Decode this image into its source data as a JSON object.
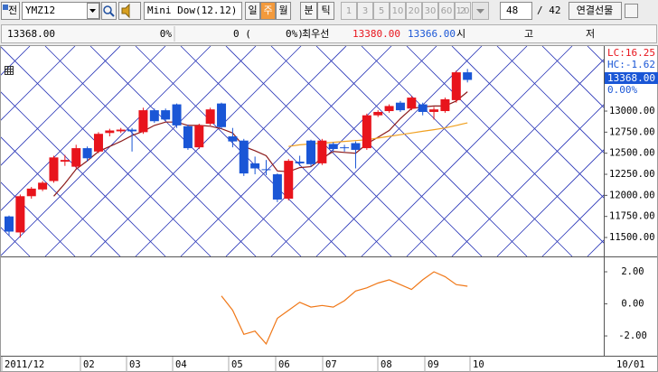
{
  "toolbar": {
    "market": "전",
    "code": "YMZ12",
    "name": "Mini Dow(12.12)",
    "periods": [
      "일",
      "주",
      "월"
    ],
    "active_period": "주",
    "units": [
      "분",
      "틱"
    ],
    "intervals": [
      "1",
      "3",
      "5",
      "10",
      "20",
      "30",
      "60",
      "120"
    ],
    "count": "48",
    "total": "/ 42",
    "button": "연결선물"
  },
  "quote": {
    "price": "13368.00",
    "rate": "0%",
    "change": "0 (",
    "change_rate": "0%)",
    "best_label": "최우선",
    "ask": "13380.00",
    "bid": "13366.00",
    "open_label": "시",
    "high_label": "고",
    "low_label": "저"
  },
  "chart_data": [
    {
      "type": "candlestick",
      "up_color": "#e8141c",
      "down_color": "#1a56d6",
      "open": [
        11750,
        11560,
        11990,
        12070,
        12170,
        12400,
        12340,
        12560,
        12520,
        12740,
        12760,
        12780,
        12750,
        13010,
        13010,
        13080,
        12820,
        12570,
        12850,
        13090,
        12700,
        12650,
        12380,
        12310,
        12250,
        11960,
        12400,
        12650,
        12380,
        12610,
        12570,
        12620,
        12560,
        12950,
        13000,
        13100,
        13030,
        13080,
        12990,
        13000,
        13130,
        13460
      ],
      "close": [
        11570,
        11990,
        12080,
        12150,
        12450,
        12420,
        12560,
        12440,
        12730,
        12770,
        12780,
        12760,
        13010,
        12880,
        12900,
        12830,
        12560,
        12830,
        13020,
        12810,
        12640,
        12260,
        12320,
        12300,
        11950,
        12410,
        12380,
        12370,
        12650,
        12550,
        12560,
        12540,
        12950,
        12990,
        13060,
        13010,
        13160,
        12990,
        13020,
        13140,
        13460,
        13370
      ],
      "high": [
        11760,
        12010,
        12100,
        12170,
        12470,
        12480,
        12600,
        12580,
        12750,
        12790,
        12800,
        12800,
        13040,
        13030,
        13030,
        13090,
        12840,
        12850,
        13040,
        13100,
        12800,
        12670,
        12460,
        12420,
        12260,
        12430,
        12470,
        12660,
        12670,
        12630,
        12600,
        12640,
        12970,
        13010,
        13080,
        13120,
        13180,
        13100,
        13050,
        13160,
        13480,
        13500
      ],
      "low": [
        11520,
        11500,
        11960,
        12050,
        12150,
        12350,
        12320,
        12400,
        12500,
        12700,
        12740,
        12520,
        12730,
        12860,
        12880,
        12800,
        12540,
        12550,
        12830,
        12790,
        12570,
        12230,
        12250,
        12240,
        11920,
        11940,
        12350,
        12340,
        12360,
        12520,
        12520,
        12320,
        12540,
        12930,
        12980,
        12990,
        13010,
        12950,
        12900,
        12980,
        13100,
        13340
      ],
      "series": [
        {
          "color": "#8b1a1a",
          "values": [
            null,
            null,
            null,
            null,
            11990,
            12140,
            12310,
            12410,
            12520,
            12580,
            12640,
            12710,
            12760,
            12830,
            12870,
            12870,
            12830,
            12830,
            12820,
            12790,
            12740,
            12580,
            12530,
            12470,
            12290,
            12280,
            12330,
            12340,
            12440,
            12520,
            12510,
            12500,
            12610,
            12690,
            12770,
            12910,
            13030,
            13050,
            13060,
            13060,
            13120,
            13230
          ]
        },
        {
          "color": "#f0a020",
          "values": [
            null,
            null,
            null,
            null,
            null,
            null,
            null,
            null,
            null,
            null,
            null,
            null,
            null,
            null,
            null,
            null,
            null,
            null,
            null,
            null,
            null,
            null,
            null,
            null,
            null,
            12580,
            12600,
            12610,
            12620,
            12630,
            12640,
            12650,
            12660,
            12680,
            12700,
            12720,
            12740,
            12760,
            12780,
            12800,
            12830,
            12860
          ]
        }
      ],
      "ylim": [
        11286,
        13761
      ],
      "yticks": [
        {
          "value": 13000,
          "label": "13000.00"
        },
        {
          "value": 12750,
          "label": "12750.00"
        },
        {
          "value": 12500,
          "label": "12500.00"
        },
        {
          "value": 12250,
          "label": "12250.00"
        },
        {
          "value": 12000,
          "label": "12000.00"
        },
        {
          "value": 11750,
          "label": "11750.00"
        },
        {
          "value": 11500,
          "label": "11500.00"
        }
      ],
      "lc_label": "LC:16.25",
      "hc_label": "HC:-1.62",
      "last_label": "13368.00",
      "pct_label": "0.00%",
      "x_labels": [
        "2011/12",
        "02",
        "03",
        "04",
        "05",
        "06",
        "07",
        "08",
        "09",
        "10"
      ],
      "x_end_label": "10/01"
    },
    {
      "type": "line",
      "color": "#f07818",
      "values": [
        null,
        null,
        null,
        null,
        null,
        null,
        null,
        null,
        null,
        null,
        null,
        null,
        null,
        null,
        null,
        null,
        null,
        null,
        null,
        0.5,
        -0.4,
        -1.9,
        -1.7,
        -2.5,
        -0.9,
        -0.4,
        0.1,
        -0.2,
        -0.1,
        -0.2,
        0.2,
        0.8,
        1.0,
        1.3,
        1.5,
        1.2,
        0.9,
        1.5,
        2.0,
        1.7,
        1.2,
        1.1
      ],
      "ylim": [
        -3.18,
        2.79
      ],
      "yticks": [
        {
          "value": 2,
          "label": "2.00"
        },
        {
          "value": 0,
          "label": "0.00"
        },
        {
          "value": -2,
          "label": "-2.00"
        }
      ]
    }
  ]
}
